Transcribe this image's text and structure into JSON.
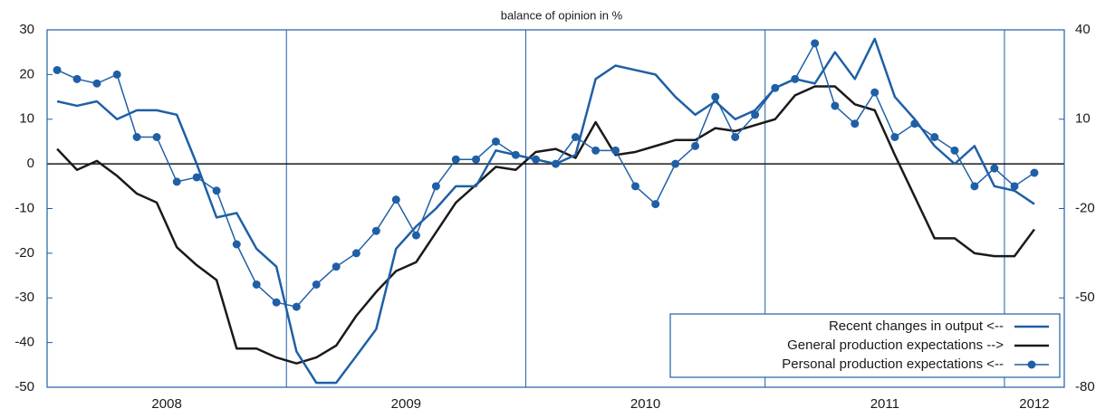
{
  "chart_data": {
    "type": "line",
    "title": "balance of opinion in %",
    "x": [
      2008.042,
      2008.125,
      2008.208,
      2008.292,
      2008.375,
      2008.458,
      2008.542,
      2008.625,
      2008.708,
      2008.792,
      2008.875,
      2008.958,
      2009.042,
      2009.125,
      2009.208,
      2009.292,
      2009.375,
      2009.458,
      2009.542,
      2009.625,
      2009.708,
      2009.792,
      2009.875,
      2009.958,
      2010.042,
      2010.125,
      2010.208,
      2010.292,
      2010.375,
      2010.458,
      2010.542,
      2010.625,
      2010.708,
      2010.792,
      2010.875,
      2010.958,
      2011.042,
      2011.125,
      2011.208,
      2011.292,
      2011.375,
      2011.458,
      2011.542,
      2011.625,
      2011.708,
      2011.792,
      2011.875,
      2011.958,
      2012.042,
      2012.125
    ],
    "xlim": [
      2008,
      2012.25
    ],
    "xticks": [
      2008,
      2009,
      2010,
      2011,
      2012
    ],
    "ylim": [
      -50,
      30
    ],
    "yticks": [
      -50,
      -40,
      -30,
      -20,
      -10,
      0,
      10,
      20,
      30
    ],
    "y2lim": [
      -80,
      40
    ],
    "y2ticks": [
      -80,
      -50,
      -20,
      10,
      40
    ],
    "legend": "lower right",
    "series": [
      {
        "name": "Recent changes in output <--",
        "color": "#1f5fa6",
        "marker": false,
        "values": [
          14,
          13,
          14,
          10,
          12,
          12,
          11,
          0,
          -12,
          -11,
          -19,
          -23,
          -42,
          -49,
          -49,
          -43,
          -37,
          -19,
          -14,
          -10,
          -5,
          -5,
          3,
          2,
          1,
          0,
          2,
          19,
          22,
          21,
          20,
          15,
          11,
          14,
          10,
          12,
          17,
          19,
          18,
          25,
          19,
          28,
          15,
          10,
          4,
          0,
          4,
          -5,
          -6,
          -9
        ]
      },
      {
        "name": "General production expectations -->",
        "color": "#1a1a1a",
        "marker": false,
        "axis": "y2",
        "values": [
          0,
          -7,
          -4,
          -9,
          -15,
          -18,
          -33,
          -39,
          -44,
          -67,
          -67,
          -70,
          -72,
          -70,
          -66,
          -56,
          -48,
          -41,
          -38,
          -28,
          -18,
          -12,
          -6,
          -7,
          -1,
          0,
          -3,
          9,
          -2,
          -1,
          1,
          3,
          3,
          7,
          6,
          8,
          10,
          18,
          21,
          21,
          15,
          13,
          -2,
          -16,
          -30,
          -30,
          -35,
          -36,
          -36,
          -27
        ]
      },
      {
        "name": "Personal production expectations <--",
        "color": "#1f5fa6",
        "marker": true,
        "values": [
          21,
          19,
          18,
          20,
          6,
          6,
          -4,
          -3,
          -6,
          -18,
          -27,
          -31,
          -32,
          -27,
          -23,
          -20,
          -15,
          -8,
          -16,
          -5,
          1,
          1,
          5,
          2,
          1,
          0,
          6,
          3,
          3,
          -5,
          -9,
          0,
          4,
          15,
          6,
          11,
          17,
          19,
          27,
          13,
          9,
          16,
          6,
          9,
          6,
          3,
          -5,
          -1,
          -5,
          -2
        ]
      }
    ]
  }
}
